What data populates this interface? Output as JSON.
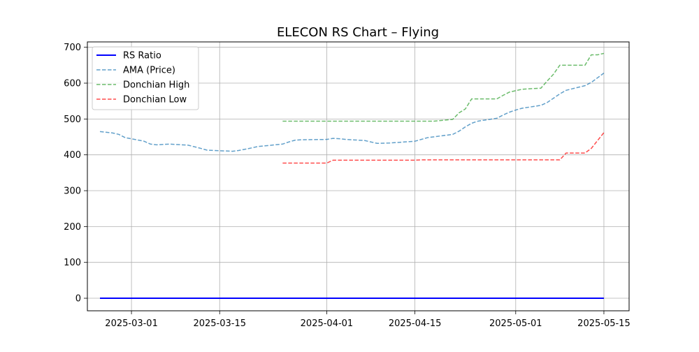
{
  "chart_data": {
    "type": "line",
    "title": "ELECON RS Chart – Flying",
    "xlabel": "",
    "ylabel": "",
    "x_axis": "date",
    "xlim": [
      "2025-02-22",
      "2025-05-19"
    ],
    "ylim": [
      -35,
      715
    ],
    "x_ticks": [
      "2025-03-01",
      "2025-03-15",
      "2025-04-01",
      "2025-04-15",
      "2025-05-01",
      "2025-05-15"
    ],
    "y_ticks": [
      0,
      100,
      200,
      300,
      400,
      500,
      600,
      700
    ],
    "grid": true,
    "legend_position": "upper-left",
    "series": [
      {
        "name": "RS Ratio",
        "color": "#0000ff",
        "style": "solid",
        "points": [
          [
            "2025-02-24",
            0
          ],
          [
            "2025-03-01",
            0
          ],
          [
            "2025-03-15",
            0
          ],
          [
            "2025-04-01",
            0
          ],
          [
            "2025-04-15",
            0
          ],
          [
            "2025-05-01",
            0
          ],
          [
            "2025-05-15",
            0
          ]
        ]
      },
      {
        "name": "AMA (Price)",
        "color": "#1f77b4",
        "style": "dashed",
        "points": [
          [
            "2025-02-24",
            465
          ],
          [
            "2025-02-26",
            461
          ],
          [
            "2025-02-27",
            457
          ],
          [
            "2025-02-28",
            448
          ],
          [
            "2025-03-03",
            438
          ],
          [
            "2025-03-04",
            430
          ],
          [
            "2025-03-05",
            428
          ],
          [
            "2025-03-07",
            430
          ],
          [
            "2025-03-10",
            427
          ],
          [
            "2025-03-12",
            418
          ],
          [
            "2025-03-13",
            413
          ],
          [
            "2025-03-17",
            410
          ],
          [
            "2025-03-18",
            412
          ],
          [
            "2025-03-20",
            419
          ],
          [
            "2025-03-21",
            423
          ],
          [
            "2025-03-25",
            430
          ],
          [
            "2025-03-26",
            436
          ],
          [
            "2025-03-27",
            441
          ],
          [
            "2025-03-28",
            442
          ],
          [
            "2025-04-01",
            443
          ],
          [
            "2025-04-02",
            446
          ],
          [
            "2025-04-03",
            445
          ],
          [
            "2025-04-04",
            443
          ],
          [
            "2025-04-07",
            440
          ],
          [
            "2025-04-08",
            436
          ],
          [
            "2025-04-09",
            432
          ],
          [
            "2025-04-11",
            433
          ],
          [
            "2025-04-15",
            438
          ],
          [
            "2025-04-16",
            443
          ],
          [
            "2025-04-17",
            448
          ],
          [
            "2025-04-21",
            457
          ],
          [
            "2025-04-22",
            466
          ],
          [
            "2025-04-23",
            478
          ],
          [
            "2025-04-24",
            488
          ],
          [
            "2025-04-25",
            494
          ],
          [
            "2025-04-28",
            502
          ],
          [
            "2025-04-29",
            511
          ],
          [
            "2025-04-30",
            519
          ],
          [
            "2025-05-01",
            525
          ],
          [
            "2025-05-02",
            530
          ],
          [
            "2025-05-05",
            538
          ],
          [
            "2025-05-06",
            546
          ],
          [
            "2025-05-07",
            558
          ],
          [
            "2025-05-08",
            570
          ],
          [
            "2025-05-09",
            580
          ],
          [
            "2025-05-12",
            593
          ],
          [
            "2025-05-13",
            602
          ],
          [
            "2025-05-14",
            615
          ],
          [
            "2025-05-15",
            628
          ]
        ]
      },
      {
        "name": "Donchian High",
        "color": "#2ca02c",
        "style": "dashed",
        "points": [
          [
            "2025-03-25",
            494
          ],
          [
            "2025-04-01",
            494
          ],
          [
            "2025-04-15",
            494
          ],
          [
            "2025-04-18",
            494
          ],
          [
            "2025-04-21",
            499
          ],
          [
            "2025-04-22",
            517
          ],
          [
            "2025-04-23",
            528
          ],
          [
            "2025-04-24",
            556
          ],
          [
            "2025-04-28",
            556
          ],
          [
            "2025-04-29",
            566
          ],
          [
            "2025-04-30",
            575
          ],
          [
            "2025-05-01",
            579
          ],
          [
            "2025-05-02",
            583
          ],
          [
            "2025-05-05",
            586
          ],
          [
            "2025-05-06",
            606
          ],
          [
            "2025-05-07",
            625
          ],
          [
            "2025-05-08",
            650
          ],
          [
            "2025-05-12",
            650
          ],
          [
            "2025-05-13",
            679
          ],
          [
            "2025-05-14",
            679
          ],
          [
            "2025-05-15",
            683
          ]
        ]
      },
      {
        "name": "Donchian Low",
        "color": "#ff0000",
        "style": "dashed",
        "points": [
          [
            "2025-03-25",
            377
          ],
          [
            "2025-04-01",
            377
          ],
          [
            "2025-04-02",
            385
          ],
          [
            "2025-04-15",
            385
          ],
          [
            "2025-04-16",
            386
          ],
          [
            "2025-05-07",
            386
          ],
          [
            "2025-05-08",
            386
          ],
          [
            "2025-05-09",
            405
          ],
          [
            "2025-05-12",
            405
          ],
          [
            "2025-05-13",
            418
          ],
          [
            "2025-05-14",
            440
          ],
          [
            "2025-05-15",
            462
          ]
        ]
      }
    ]
  }
}
